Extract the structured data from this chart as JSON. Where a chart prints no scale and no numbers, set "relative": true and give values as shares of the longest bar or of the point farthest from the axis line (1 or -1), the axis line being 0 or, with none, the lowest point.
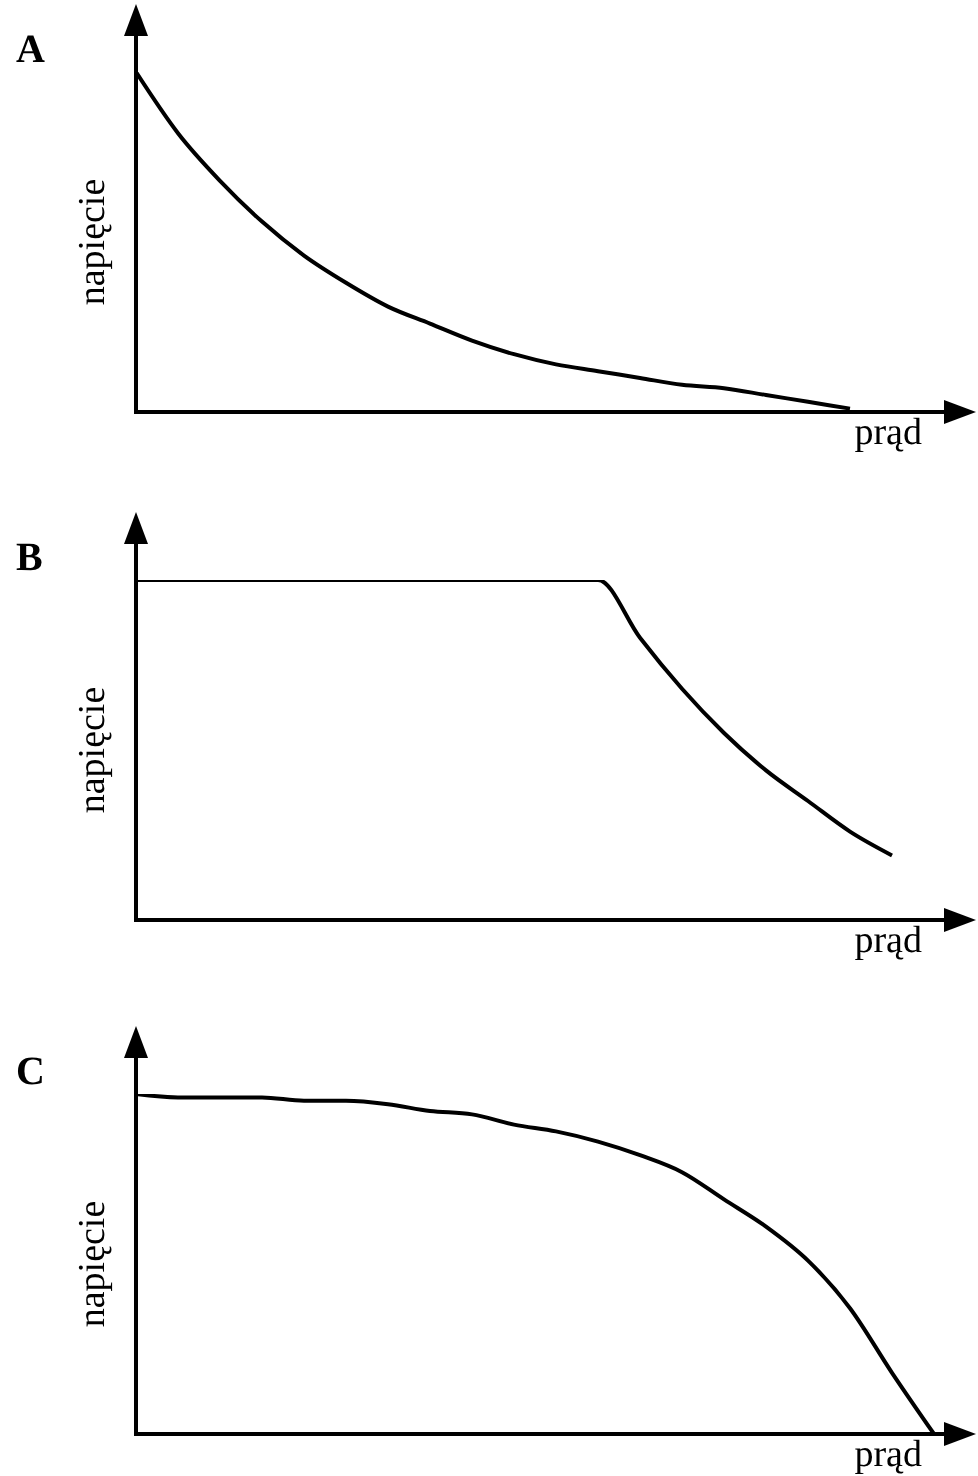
{
  "chart_data": [
    {
      "type": "line",
      "title": "A",
      "xlabel": "prąd",
      "ylabel": "napięcie",
      "relative": true,
      "color": "#000000",
      "categories": [
        null,
        null,
        null,
        null,
        null,
        null,
        null,
        null,
        null,
        null,
        null,
        null,
        null,
        null,
        null,
        null,
        null,
        null,
        null,
        null,
        null
      ],
      "values": [
        1,
        0.82,
        0.68,
        0.56,
        0.46,
        0.38,
        0.31,
        0.26,
        0.21,
        0.17,
        0.14,
        0.12,
        0.1,
        0.08,
        0.07,
        0.05,
        0.03,
        0.01,
        null,
        null,
        null
      ]
    },
    {
      "type": "line",
      "title": "B",
      "xlabel": "prąd",
      "ylabel": "napięcie",
      "relative": true,
      "color": "#000000",
      "categories": [
        null,
        null,
        null,
        null,
        null,
        null,
        null,
        null,
        null,
        null,
        null,
        null,
        null,
        null,
        null,
        null,
        null,
        null,
        null,
        null,
        null
      ],
      "values": [
        1,
        1,
        1,
        1,
        1,
        1,
        1,
        1,
        1,
        1,
        1,
        1,
        0.83,
        0.68,
        0.55,
        0.44,
        0.35,
        0.26,
        0.19,
        null,
        null
      ]
    },
    {
      "type": "line",
      "title": "C",
      "xlabel": "prąd",
      "ylabel": "napięcie",
      "relative": true,
      "color": "#000000",
      "categories": [
        null,
        null,
        null,
        null,
        null,
        null,
        null,
        null,
        null,
        null,
        null,
        null,
        null,
        null,
        null,
        null,
        null,
        null,
        null,
        null,
        null
      ],
      "values": [
        1,
        0.99,
        0.99,
        0.99,
        0.98,
        0.98,
        0.97,
        0.95,
        0.94,
        0.91,
        0.89,
        0.86,
        0.82,
        0.77,
        0.69,
        0.61,
        0.51,
        0.37,
        0.18,
        0,
        null
      ]
    }
  ]
}
